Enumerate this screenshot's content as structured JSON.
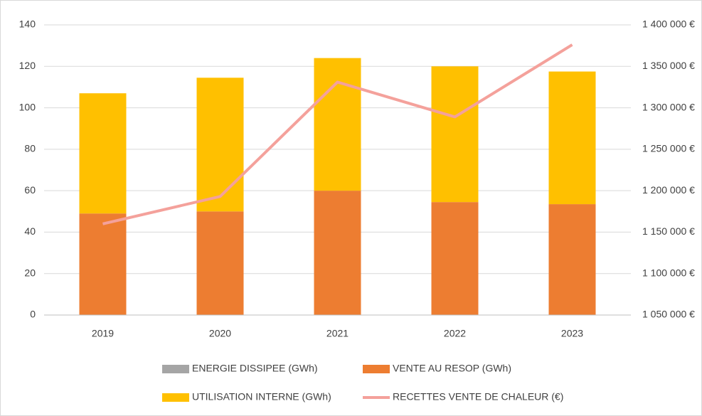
{
  "chart_data": {
    "type": "bar",
    "categories": [
      "2019",
      "2020",
      "2021",
      "2022",
      "2023"
    ],
    "stacked": true,
    "series": [
      {
        "name": "ENERGIE DISSIPEE (GWh)",
        "color": "#a5a5a5",
        "type": "bar",
        "values": [
          0,
          0,
          0,
          0,
          0
        ]
      },
      {
        "name": "VENTE AU RESOP (GWh)",
        "color": "#ed7d31",
        "type": "bar",
        "values": [
          49,
          50,
          60,
          54.5,
          53.5
        ]
      },
      {
        "name": "UTILISATION INTERNE (GWh)",
        "color": "#ffc000",
        "type": "bar",
        "values": [
          58,
          64.5,
          64,
          65.5,
          64
        ]
      },
      {
        "name": "RECETTES VENTE DE CHALEUR (€)",
        "color": "#f4a19b",
        "type": "line",
        "axis": "y2",
        "values": [
          1160000,
          1193000,
          1331000,
          1289000,
          1376000
        ]
      }
    ],
    "ylim": [
      0,
      140
    ],
    "yticks": [
      0,
      20,
      40,
      60,
      80,
      100,
      120,
      140
    ],
    "y2lim": [
      1050000,
      1400000
    ],
    "y2ticks": [
      {
        "value": 1050000,
        "label": "1 050 000 €"
      },
      {
        "value": 1100000,
        "label": "1 100 000 €"
      },
      {
        "value": 1150000,
        "label": "1 150 000 €"
      },
      {
        "value": 1200000,
        "label": "1 200 000 €"
      },
      {
        "value": 1250000,
        "label": "1 250 000 €"
      },
      {
        "value": 1300000,
        "label": "1 300 000 €"
      },
      {
        "value": 1350000,
        "label": "1 350 000 €"
      },
      {
        "value": 1400000,
        "label": "1 400 000 €"
      }
    ],
    "grid": true,
    "legend": "bottom"
  }
}
